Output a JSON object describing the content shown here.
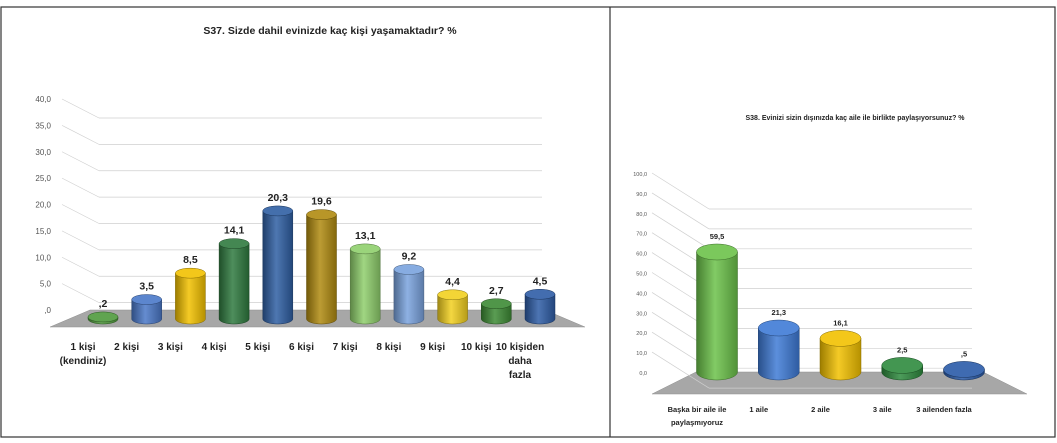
{
  "chart_data": [
    {
      "type": "bar",
      "title": "S37. Sizde dahil evinizde kaç kişi yaşamaktadır? %",
      "categories": [
        "1 kişi (kendiniz)",
        "2 kişi",
        "3 kişi",
        "4 kişi",
        "5 kişi",
        "6 kişi",
        "7 kişi",
        "8 kişi",
        "9 kişi",
        "10 kişi",
        "10 kişiden daha fazla"
      ],
      "category_lines": [
        [
          "1 kişi",
          "(kendiniz)"
        ],
        [
          "2 kişi"
        ],
        [
          "3 kişi"
        ],
        [
          "4 kişi"
        ],
        [
          "5 kişi"
        ],
        [
          "6 kişi"
        ],
        [
          "7 kişi"
        ],
        [
          "8 kişi"
        ],
        [
          "9 kişi"
        ],
        [
          "10 kişi"
        ],
        [
          "10 kişiden",
          "daha",
          "fazla"
        ]
      ],
      "values": [
        0.2,
        3.5,
        8.5,
        14.1,
        20.3,
        19.6,
        13.1,
        9.2,
        4.4,
        2.7,
        4.5
      ],
      "value_labels": [
        ",2",
        "3,5",
        "8,5",
        "14,1",
        "20,3",
        "19,6",
        "13,1",
        "9,2",
        "4,4",
        "2,7",
        "4,5"
      ],
      "colors": [
        "#4e9a3c",
        "#4a78c8",
        "#f2c100",
        "#2f7a3f",
        "#2f5fa3",
        "#b08a10",
        "#8fcf6c",
        "#7aa3de",
        "#f2d020",
        "#3d8a35",
        "#2e5da6"
      ],
      "ylim": [
        0,
        40
      ],
      "ticks": [
        ",0",
        "5,0",
        "10,0",
        "15,0",
        "20,0",
        "25,0",
        "30,0",
        "35,0",
        "40,0"
      ],
      "grid": true
    },
    {
      "type": "bar",
      "title": "S38. Evinizi sizin dışınızda kaç aile ile birlikte paylaşıyorsunuz?  %",
      "categories": [
        "Başka bir aile ile paylaşmıyoruz",
        "1 aile",
        "2 aile",
        "3 aile",
        "3 ailenden fazla"
      ],
      "category_lines": [
        [
          "Başka bir aile ile",
          "paylaşmıyoruz"
        ],
        [
          "1 aile"
        ],
        [
          "2 aile"
        ],
        [
          "3 aile"
        ],
        [
          "3 ailenden fazla"
        ]
      ],
      "values": [
        59.5,
        21.3,
        16.1,
        2.5,
        0.5
      ],
      "value_labels": [
        "59,5",
        "21,3",
        "16,1",
        "2,5",
        ",5"
      ],
      "colors": [
        "#6cc24a",
        "#3f7bd6",
        "#f2c100",
        "#2e8a3e",
        "#2a5aa8"
      ],
      "ylim": [
        0,
        100
      ],
      "ticks": [
        "0,0",
        "10,0",
        "20,0",
        "30,0",
        "40,0",
        "50,0",
        "60,0",
        "70,0",
        "80,0",
        "90,0",
        "100,0"
      ],
      "grid": true
    }
  ]
}
